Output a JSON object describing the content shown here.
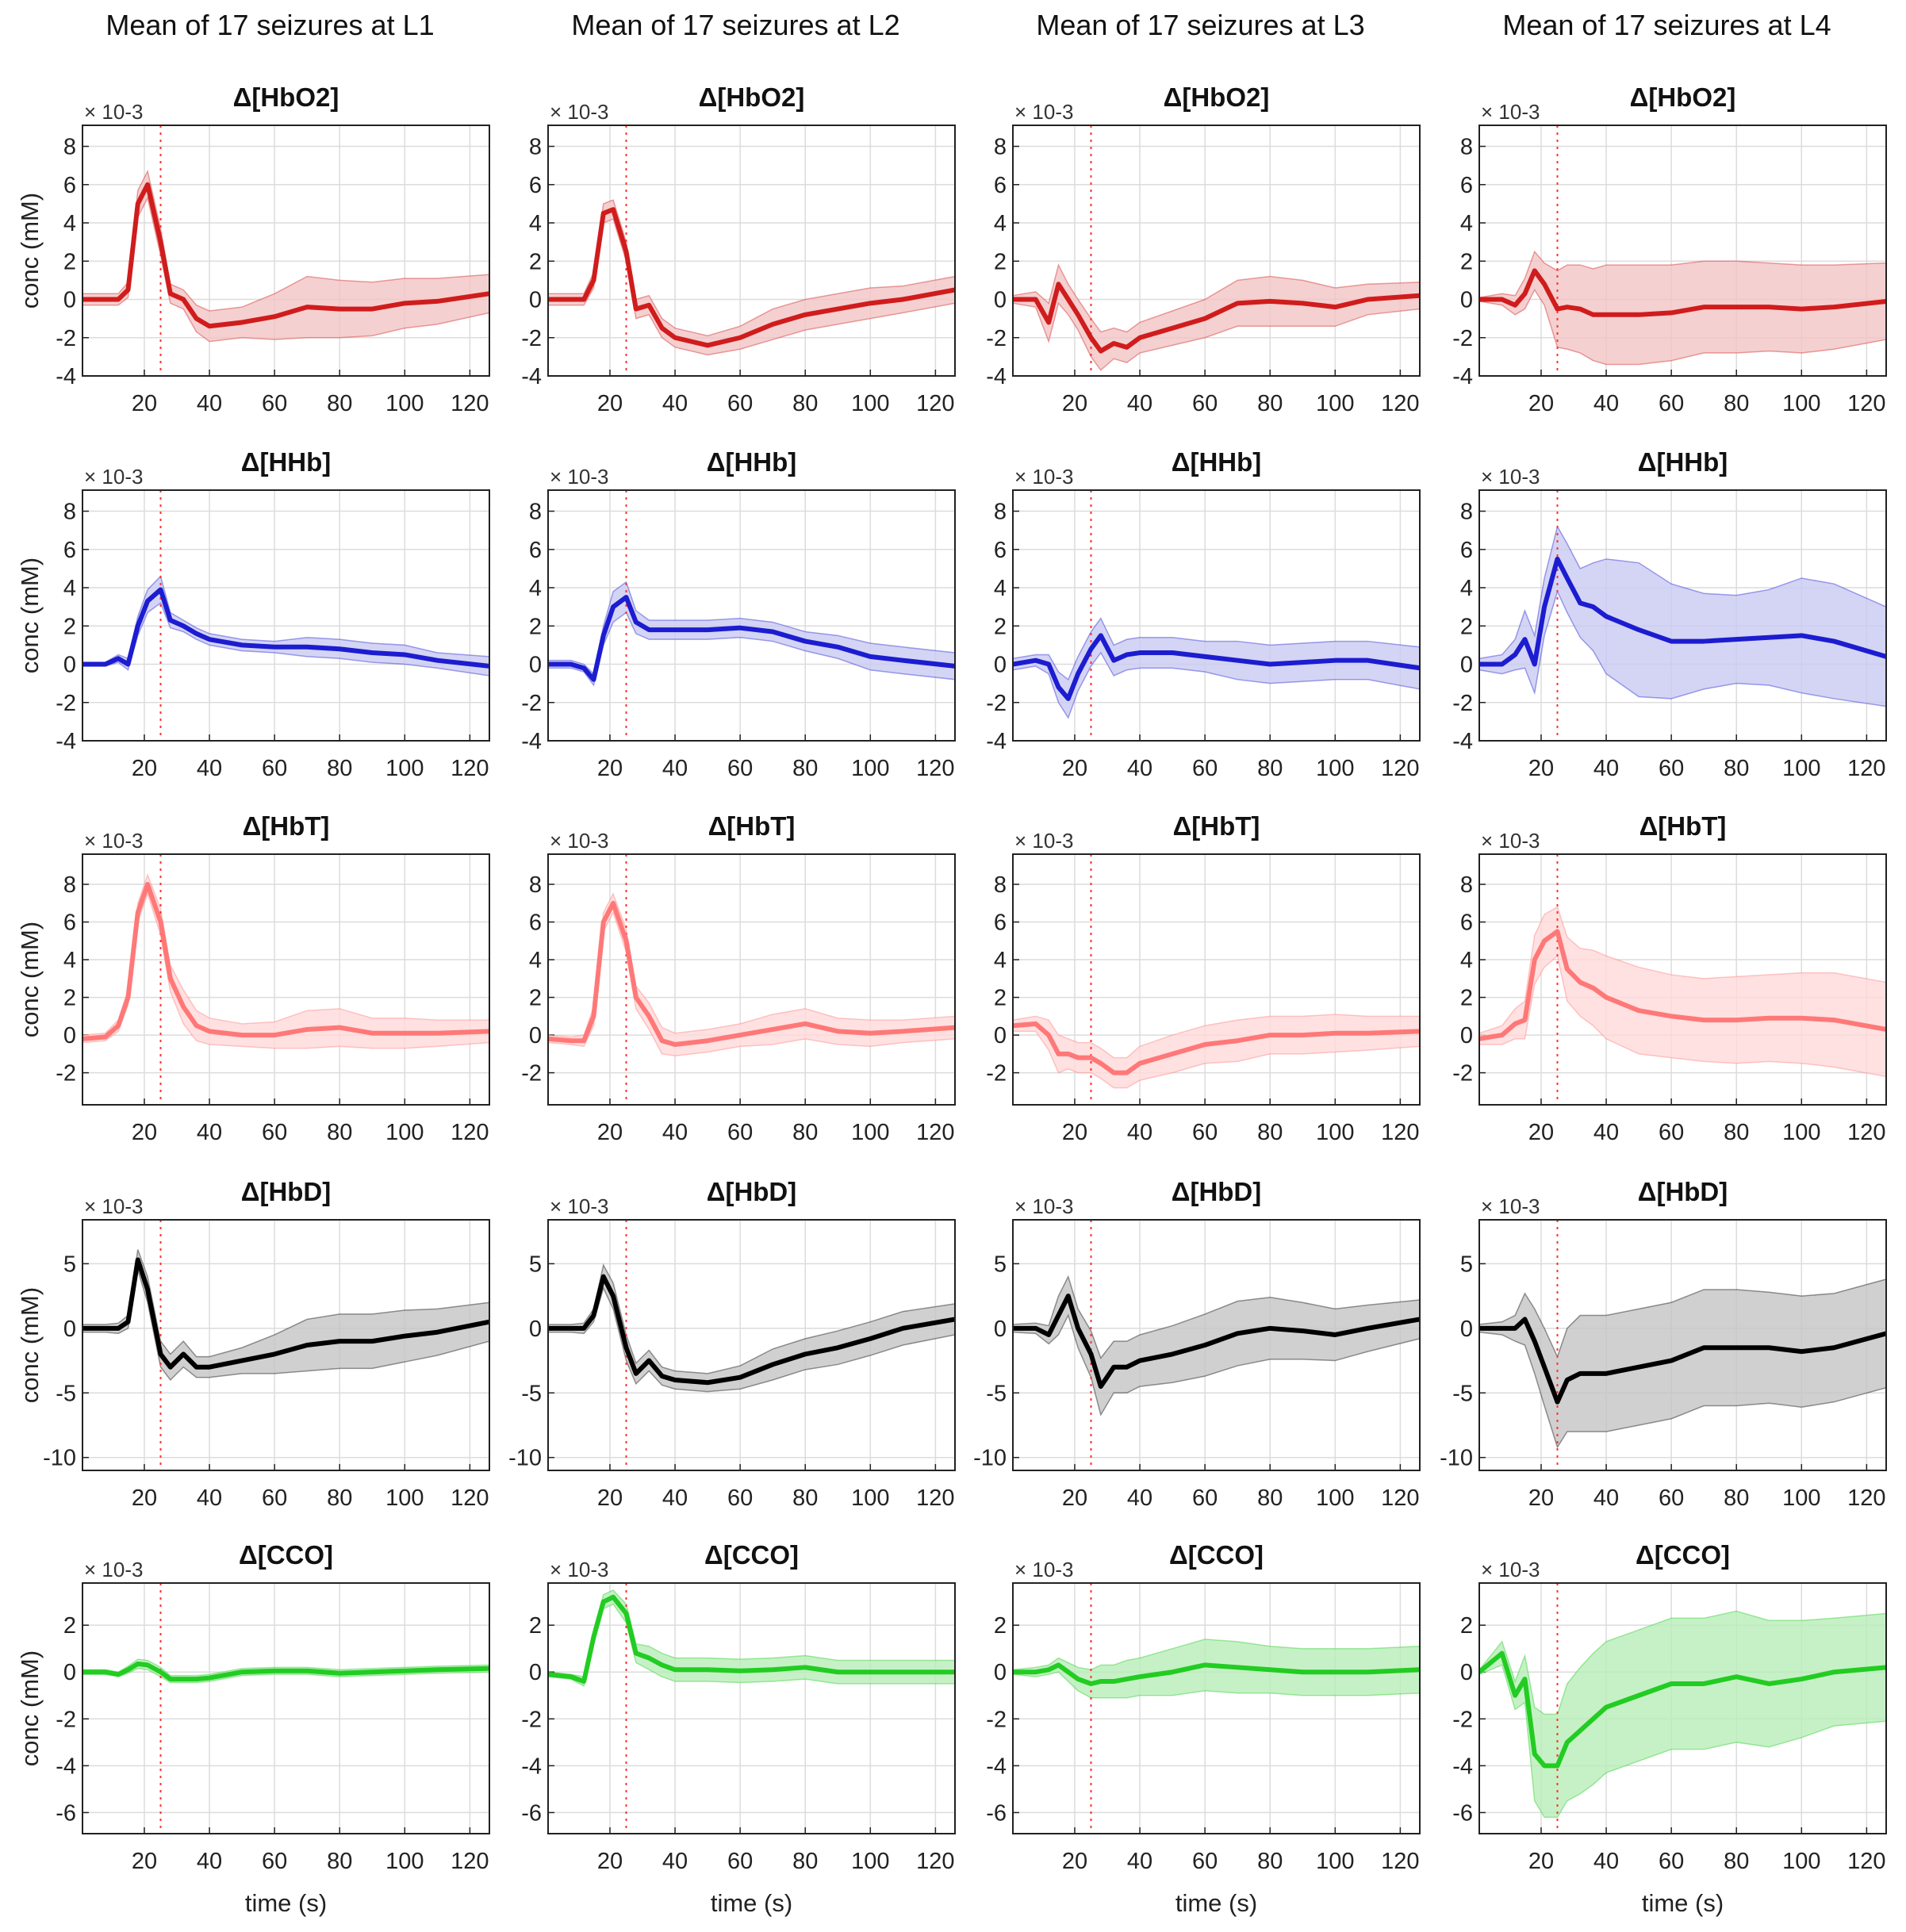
{
  "chart_data": {
    "type": "line",
    "description_title": "Mean of 17 seizures",
    "column_titles": [
      "Mean of 17 seizures at L1",
      "Mean of 17 seizures at L2",
      "Mean of 17 seizures at L3",
      "Mean of 17 seizures at L4"
    ],
    "xlabel": "time (s)",
    "ylabel": "conc (mM)",
    "y_multiplier": "× 10-3",
    "xlim": [
      1,
      126
    ],
    "xticks": [
      20,
      40,
      60,
      80,
      100,
      120
    ],
    "event_marker_x": 25,
    "x": [
      1,
      8,
      12,
      15,
      18,
      21,
      25,
      28,
      32,
      36,
      40,
      50,
      60,
      70,
      80,
      90,
      100,
      110,
      126
    ],
    "rows": [
      {
        "title": "Δ[HbO2]",
        "color": "#d01c1c",
        "band_color": "#f3c4c4",
        "ylim": [
          -4,
          9.1
        ],
        "yticks": [
          -4,
          -2,
          0,
          2,
          4,
          6,
          8
        ],
        "series": [
          {
            "name": "L1",
            "mean": [
              0,
              0,
              0,
              0.5,
              5,
              6,
              3,
              0.3,
              0,
              -1,
              -1.4,
              -1.2,
              -0.9,
              -0.4,
              -0.5,
              -0.5,
              -0.2,
              -0.1,
              0.3
            ],
            "spread": [
              0.3,
              0.3,
              0.3,
              0.4,
              0.7,
              0.7,
              0.7,
              0.5,
              0.5,
              0.7,
              0.8,
              0.8,
              1.2,
              1.6,
              1.5,
              1.4,
              1.3,
              1.2,
              1.0
            ]
          },
          {
            "name": "L2",
            "mean": [
              0,
              0,
              0,
              1,
              4.5,
              4.7,
              2.5,
              -0.5,
              -0.3,
              -1.5,
              -2,
              -2.4,
              -2,
              -1.3,
              -0.8,
              -0.5,
              -0.2,
              0,
              0.5
            ],
            "spread": [
              0.3,
              0.3,
              0.3,
              0.4,
              0.5,
              0.5,
              0.5,
              0.5,
              0.5,
              0.5,
              0.5,
              0.5,
              0.6,
              0.8,
              0.8,
              0.8,
              0.8,
              0.7,
              0.7
            ]
          },
          {
            "name": "L3",
            "mean": [
              0,
              0,
              -1.2,
              0.8,
              0,
              -0.8,
              -2,
              -2.7,
              -2.3,
              -2.5,
              -2,
              -1.5,
              -1,
              -0.2,
              -0.1,
              -0.2,
              -0.4,
              0,
              0.2
            ],
            "spread": [
              0.2,
              0.4,
              1,
              1,
              0.8,
              0.8,
              1,
              1,
              0.8,
              0.8,
              0.8,
              0.9,
              1,
              1.2,
              1.3,
              1.2,
              1.0,
              0.8,
              0.7
            ]
          },
          {
            "name": "L4",
            "mean": [
              0,
              0,
              -0.3,
              0.3,
              1.5,
              0.8,
              -0.5,
              -0.4,
              -0.5,
              -0.8,
              -0.8,
              -0.8,
              -0.7,
              -0.4,
              -0.4,
              -0.4,
              -0.5,
              -0.4,
              -0.1
            ],
            "spread": [
              0.1,
              0.3,
              0.5,
              0.8,
              1,
              1.1,
              2,
              2.2,
              2.3,
              2.4,
              2.6,
              2.6,
              2.5,
              2.4,
              2.4,
              2.3,
              2.3,
              2.2,
              2
            ]
          }
        ]
      },
      {
        "title": "Δ[HHb]",
        "color": "#1c1cd0",
        "band_color": "#c9c9f3",
        "ylim": [
          -4,
          9.1
        ],
        "yticks": [
          -4,
          -2,
          0,
          2,
          4,
          6,
          8
        ],
        "series": [
          {
            "name": "L1",
            "mean": [
              0,
              0,
              0.3,
              0,
              2,
              3.3,
              3.9,
              2.3,
              2,
              1.6,
              1.3,
              1,
              0.9,
              0.9,
              0.8,
              0.6,
              0.5,
              0.2,
              -0.1
            ],
            "spread": [
              0.1,
              0.1,
              0.2,
              0.3,
              0.5,
              0.6,
              0.7,
              0.4,
              0.3,
              0.3,
              0.3,
              0.3,
              0.3,
              0.5,
              0.5,
              0.5,
              0.5,
              0.4,
              0.5
            ]
          },
          {
            "name": "L2",
            "mean": [
              0,
              0,
              -0.2,
              -0.8,
              1.5,
              3,
              3.5,
              2.2,
              1.8,
              1.8,
              1.8,
              1.8,
              1.9,
              1.7,
              1.2,
              0.9,
              0.4,
              0.2,
              -0.1
            ],
            "spread": [
              0.2,
              0.2,
              0.2,
              0.3,
              0.5,
              0.8,
              0.8,
              0.6,
              0.5,
              0.5,
              0.5,
              0.5,
              0.5,
              0.5,
              0.5,
              0.6,
              0.7,
              0.7,
              0.7
            ]
          },
          {
            "name": "L3",
            "mean": [
              0,
              0.2,
              0,
              -1.2,
              -1.8,
              -0.5,
              0.8,
              1.5,
              0.2,
              0.5,
              0.6,
              0.6,
              0.4,
              0.2,
              0,
              0.1,
              0.2,
              0.2,
              -0.2
            ],
            "spread": [
              0.3,
              0.3,
              0.5,
              0.8,
              1,
              0.9,
              0.9,
              0.9,
              0.8,
              0.8,
              0.8,
              0.8,
              0.8,
              1,
              1,
              1,
              1,
              1,
              1.1
            ]
          },
          {
            "name": "L4",
            "mean": [
              0,
              0,
              0.5,
              1.3,
              0,
              3,
              5.5,
              4.5,
              3.2,
              3,
              2.5,
              1.8,
              1.2,
              1.2,
              1.3,
              1.4,
              1.5,
              1.2,
              0.4
            ],
            "spread": [
              0.3,
              0.5,
              0.8,
              1.5,
              1.5,
              1.5,
              1.7,
              1.8,
              1.8,
              2.3,
              3,
              3.5,
              3,
              2.5,
              2.3,
              2.5,
              3,
              3,
              2.6
            ]
          }
        ]
      },
      {
        "title": "Δ[HbT]",
        "color": "#ff7878",
        "band_color": "#ffd9d9",
        "ylim": [
          -3.7,
          9.6
        ],
        "yticks": [
          -2,
          0,
          2,
          4,
          6,
          8
        ],
        "series": [
          {
            "name": "L1",
            "mean": [
              -0.2,
              -0.1,
              0.5,
              2,
              6.5,
              8,
              6,
              3,
              1.5,
              0.5,
              0.2,
              0,
              0,
              0.3,
              0.4,
              0.1,
              0.1,
              0.1,
              0.2
            ],
            "spread": [
              0.2,
              0.2,
              0.3,
              0.4,
              0.5,
              0.5,
              0.7,
              0.7,
              0.9,
              0.8,
              0.7,
              0.6,
              0.7,
              1,
              1,
              0.8,
              0.8,
              0.7,
              0.6
            ]
          },
          {
            "name": "L2",
            "mean": [
              -0.2,
              -0.3,
              -0.3,
              1,
              6,
              7,
              5,
              2,
              1,
              -0.3,
              -0.5,
              -0.3,
              0,
              0.3,
              0.6,
              0.2,
              0.1,
              0.2,
              0.4
            ],
            "spread": [
              0.2,
              0.2,
              0.3,
              0.5,
              0.5,
              0.5,
              0.6,
              0.6,
              0.7,
              0.7,
              0.6,
              0.6,
              0.6,
              0.8,
              0.8,
              0.7,
              0.7,
              0.6,
              0.6
            ]
          },
          {
            "name": "L3",
            "mean": [
              0.5,
              0.6,
              0,
              -1,
              -1,
              -1.2,
              -1.2,
              -1.5,
              -2,
              -2,
              -1.5,
              -1,
              -0.5,
              -0.3,
              0,
              0,
              0.1,
              0.1,
              0.2
            ],
            "spread": [
              0.3,
              0.4,
              0.8,
              1,
              0.8,
              0.8,
              0.8,
              0.8,
              0.8,
              0.8,
              0.9,
              1,
              1,
              1.1,
              1,
              1,
              1,
              0.9,
              0.8
            ]
          },
          {
            "name": "L4",
            "mean": [
              -0.2,
              0,
              0.6,
              0.8,
              4,
              5,
              5.5,
              3.5,
              2.8,
              2.5,
              2,
              1.3,
              1,
              0.8,
              0.8,
              0.9,
              0.9,
              0.8,
              0.3
            ],
            "spread": [
              0.3,
              0.5,
              0.8,
              1,
              1.3,
              1.4,
              1.3,
              1.7,
              1.8,
              2,
              2.2,
              2.3,
              2.2,
              2.2,
              2.3,
              2.3,
              2.4,
              2.5,
              2.5
            ]
          }
        ]
      },
      {
        "title": "Δ[HbD]",
        "color": "#000000",
        "band_color": "#c4c4c4",
        "ylim": [
          -11,
          8.4
        ],
        "yticks": [
          -10,
          -5,
          0,
          5
        ],
        "series": [
          {
            "name": "L1",
            "mean": [
              0,
              0,
              0,
              0.5,
              5.3,
              3,
              -2,
              -3,
              -2,
              -3,
              -3,
              -2.5,
              -2,
              -1.3,
              -1,
              -1,
              -0.6,
              -0.3,
              0.5
            ],
            "spread": [
              0.3,
              0.3,
              0.4,
              0.5,
              0.8,
              1,
              1,
              1,
              1,
              0.8,
              0.8,
              1,
              1.5,
              2,
              2.1,
              2.1,
              2,
              1.8,
              1.5
            ]
          },
          {
            "name": "L2",
            "mean": [
              0,
              0,
              0,
              1,
              4,
              2.5,
              -1.5,
              -3.5,
              -2.5,
              -3.7,
              -4,
              -4.2,
              -3.8,
              -2.8,
              -2,
              -1.5,
              -0.8,
              0,
              0.7
            ],
            "spread": [
              0.3,
              0.3,
              0.4,
              0.5,
              0.9,
              1,
              1,
              0.8,
              0.8,
              0.7,
              0.7,
              0.7,
              0.9,
              1.2,
              1.2,
              1.3,
              1.3,
              1.3,
              1.2
            ]
          },
          {
            "name": "L3",
            "mean": [
              0,
              0,
              -0.5,
              1,
              2.5,
              0,
              -2,
              -4.5,
              -3,
              -3,
              -2.5,
              -2,
              -1.3,
              -0.4,
              0,
              -0.2,
              -0.5,
              0,
              0.7
            ],
            "spread": [
              0.3,
              0.4,
              0.7,
              1.5,
              1.5,
              1.5,
              1.8,
              2.2,
              2,
              2,
              2,
              2.2,
              2.4,
              2.5,
              2.4,
              2.2,
              2,
              1.8,
              1.5
            ]
          },
          {
            "name": "L4",
            "mean": [
              0,
              0,
              0,
              0.7,
              -1,
              -3,
              -5.7,
              -4,
              -3.5,
              -3.5,
              -3.5,
              -3,
              -2.5,
              -1.5,
              -1.5,
              -1.5,
              -1.8,
              -1.5,
              -0.4
            ],
            "spread": [
              0.3,
              0.5,
              1,
              2,
              2.5,
              3,
              3.5,
              4,
              4.5,
              4.5,
              4.5,
              4.5,
              4.5,
              4.5,
              4.5,
              4.3,
              4.3,
              4.2,
              4.2
            ]
          }
        ]
      },
      {
        "title": "Δ[CCO]",
        "color": "#22cc22",
        "band_color": "#b8edb8",
        "ylim": [
          -6.9,
          3.8
        ],
        "yticks": [
          -6,
          -4,
          -2,
          0,
          2
        ],
        "series": [
          {
            "name": "L1",
            "mean": [
              0,
              0,
              -0.1,
              0.1,
              0.35,
              0.3,
              0,
              -0.3,
              -0.3,
              -0.3,
              -0.25,
              0,
              0.05,
              0.05,
              -0.05,
              0,
              0.05,
              0.1,
              0.15
            ],
            "spread": [
              0.1,
              0.1,
              0.1,
              0.15,
              0.2,
              0.2,
              0.2,
              0.15,
              0.15,
              0.15,
              0.15,
              0.15,
              0.15,
              0.15,
              0.15,
              0.15,
              0.15,
              0.15,
              0.15
            ]
          },
          {
            "name": "L2",
            "mean": [
              -0.1,
              -0.2,
              -0.4,
              1.5,
              3,
              3.2,
              2.5,
              0.8,
              0.6,
              0.3,
              0.1,
              0.1,
              0.05,
              0.1,
              0.2,
              0,
              0,
              0,
              0
            ],
            "spread": [
              0.1,
              0.1,
              0.2,
              0.3,
              0.3,
              0.3,
              0.4,
              0.4,
              0.5,
              0.5,
              0.5,
              0.5,
              0.5,
              0.5,
              0.5,
              0.5,
              0.5,
              0.5,
              0.5
            ]
          },
          {
            "name": "L3",
            "mean": [
              0,
              0,
              0.1,
              0.3,
              0,
              -0.3,
              -0.5,
              -0.4,
              -0.4,
              -0.3,
              -0.2,
              0,
              0.3,
              0.2,
              0.1,
              0,
              0,
              0,
              0.1
            ],
            "spread": [
              0.1,
              0.2,
              0.2,
              0.3,
              0.4,
              0.5,
              0.6,
              0.7,
              0.7,
              0.8,
              0.8,
              1,
              1.1,
              1.1,
              1,
              1,
              1,
              1,
              1
            ]
          },
          {
            "name": "L4",
            "mean": [
              0,
              0.8,
              -1,
              -0.3,
              -3.5,
              -4,
              -4,
              -3,
              -2.5,
              -2,
              -1.5,
              -1,
              -0.5,
              -0.5,
              -0.2,
              -0.5,
              -0.3,
              0,
              0.2
            ],
            "spread": [
              0.1,
              0.5,
              0.6,
              1,
              2,
              2.2,
              2.2,
              2.5,
              2.7,
              2.8,
              2.8,
              2.8,
              2.8,
              2.8,
              2.8,
              2.7,
              2.5,
              2.3,
              2.3
            ]
          }
        ]
      }
    ]
  }
}
